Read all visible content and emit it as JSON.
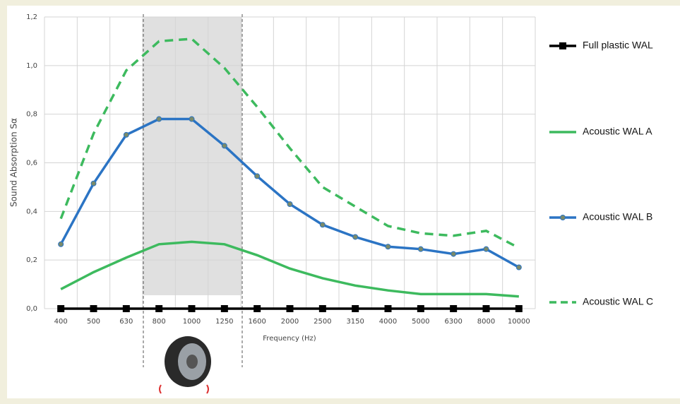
{
  "chart_data": {
    "type": "line",
    "y_label": "Sound Absorption Sα",
    "x_label": "Frequency (Hz)",
    "categories": [
      "400",
      "500",
      "630",
      "800",
      "1000",
      "1250",
      "1600",
      "2000",
      "2500",
      "3150",
      "4000",
      "5000",
      "6300",
      "8000",
      "10000"
    ],
    "ylim": [
      0,
      1.2
    ],
    "yticks": [
      {
        "value": 0,
        "label": "0,0"
      },
      {
        "value": 0.2,
        "label": "0,2"
      },
      {
        "value": 0.4,
        "label": "0,4"
      },
      {
        "value": 0.6,
        "label": "0,6"
      },
      {
        "value": 0.8,
        "label": "0,8"
      },
      {
        "value": 1.0,
        "label": "1,0"
      },
      {
        "value": 1.2,
        "label": "1,2"
      }
    ],
    "grid": true,
    "legend": "right",
    "series": [
      {
        "name": "Full plastic WAL",
        "color": "#000000",
        "marker": "square",
        "dashed": false,
        "values": [
          0,
          0,
          0,
          0,
          0,
          0,
          0,
          0,
          0,
          0,
          0,
          0,
          0,
          0,
          0
        ]
      },
      {
        "name": "Acoustic WAL A",
        "color": "#3dba5e",
        "marker": "none",
        "dashed": false,
        "values": [
          0.08,
          0.15,
          0.21,
          0.265,
          0.275,
          0.265,
          0.22,
          0.165,
          0.125,
          0.095,
          0.075,
          0.06,
          0.06,
          0.06,
          0.05
        ]
      },
      {
        "name": "Acoustic WAL B",
        "color": "#2b74c4",
        "marker": "circle",
        "dashed": false,
        "values": [
          0.265,
          0.515,
          0.715,
          0.78,
          0.78,
          0.67,
          0.545,
          0.43,
          0.345,
          0.295,
          0.255,
          0.245,
          0.225,
          0.245,
          0.17
        ]
      },
      {
        "name": "Acoustic WAL C",
        "color": "#3dba5e",
        "marker": "none",
        "dashed": true,
        "values": [
          0.37,
          0.72,
          0.98,
          1.1,
          1.11,
          0.99,
          0.83,
          0.66,
          0.5,
          0.42,
          0.34,
          0.31,
          0.3,
          0.32,
          0.25
        ]
      }
    ]
  }
}
